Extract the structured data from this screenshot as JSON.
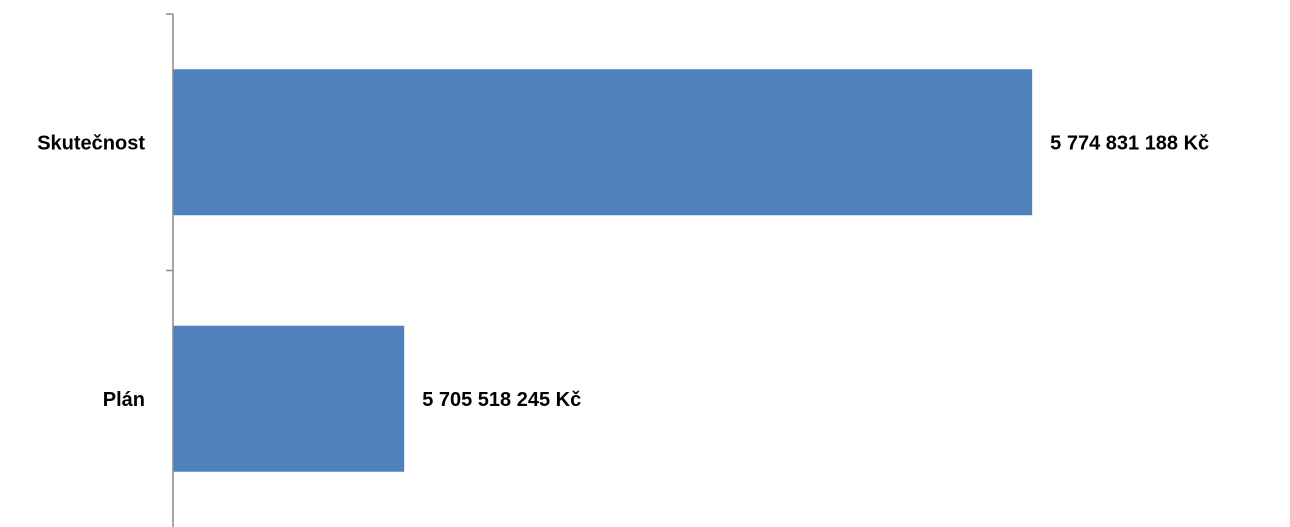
{
  "chart_data": {
    "type": "bar",
    "orientation": "horizontal",
    "categories": [
      "Skutečnost",
      "Plán"
    ],
    "values": [
      5774831188,
      5705518245
    ],
    "data_labels": [
      "5 774 831 188 Kč",
      "5 705 518 245 Kč"
    ],
    "xlim": [
      5680000000,
      5780000000
    ],
    "unit": "Kč",
    "title": "",
    "xlabel": "",
    "ylabel": "",
    "grid": false,
    "legend": "none",
    "bar_color": "#4F81BD",
    "axis_color": "#898989"
  }
}
